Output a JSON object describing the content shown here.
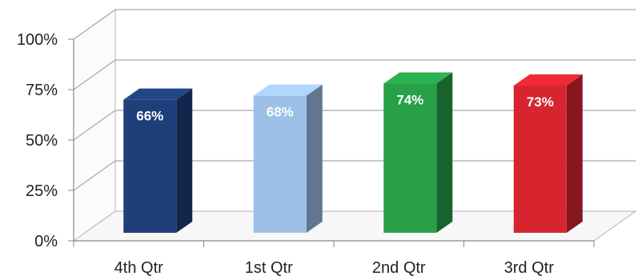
{
  "chart_data": {
    "type": "bar",
    "title": "",
    "xlabel": "",
    "ylabel": "",
    "categories": [
      "4th Qtr",
      "1st Qtr",
      "2nd Qtr",
      "3rd Qtr"
    ],
    "values": [
      66,
      68,
      74,
      73
    ],
    "data_labels": [
      "66%",
      "68%",
      "74%",
      "73%"
    ],
    "y_ticks": [
      "0%",
      "25%",
      "50%",
      "75%",
      "100%"
    ],
    "ylim": [
      0,
      100
    ],
    "grid": true,
    "three_d": true,
    "colors": [
      "#1e3f7a",
      "#9cc0e8",
      "#27a048",
      "#d6252f"
    ]
  }
}
